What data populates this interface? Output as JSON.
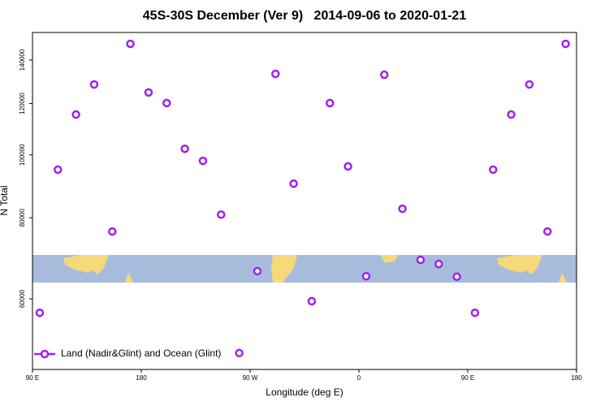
{
  "chart_data": {
    "type": "scatter",
    "title": "45S-30S December (Ver 9)   2014-09-06 to 2020-01-21",
    "xlabel": "Longitude (deg E)",
    "ylabel": "N Total",
    "series": [
      {
        "name": "Land (Nadir&Glint) and Ocean (Glint)",
        "color": "#a020f0",
        "x": [
          96,
          111,
          126,
          141,
          156,
          171,
          186,
          201,
          216,
          231,
          246,
          261,
          276,
          291,
          306,
          321,
          336,
          351,
          366,
          381,
          396,
          411,
          426,
          441,
          456,
          471,
          486,
          501,
          516,
          531
        ],
        "values": [
          57100,
          94900,
          115400,
          128400,
          76200,
          148300,
          124800,
          120200,
          102200,
          97900,
          80900,
          49500,
          66200,
          133300,
          90300,
          59500,
          120200,
          96000,
          65000,
          132900,
          82600,
          68900,
          67900,
          64900,
          57100,
          94900,
          115400,
          128400,
          76200,
          148300
        ]
      }
    ],
    "xlim": [
      90,
      540
    ],
    "xticks": [
      {
        "value": 90,
        "label": "90 E"
      },
      180,
      {
        "value": 270,
        "label": "90 W"
      },
      {
        "value": 360,
        "label": "0"
      },
      {
        "value": 450,
        "label": "90 E"
      },
      {
        "value": 540,
        "label": "180"
      }
    ],
    "ylim": [
      46700,
      154400
    ],
    "ylog": true,
    "yticks": [
      60000,
      80000,
      100000,
      120000,
      140000
    ],
    "legend": "bottom-left",
    "grid": false
  }
}
